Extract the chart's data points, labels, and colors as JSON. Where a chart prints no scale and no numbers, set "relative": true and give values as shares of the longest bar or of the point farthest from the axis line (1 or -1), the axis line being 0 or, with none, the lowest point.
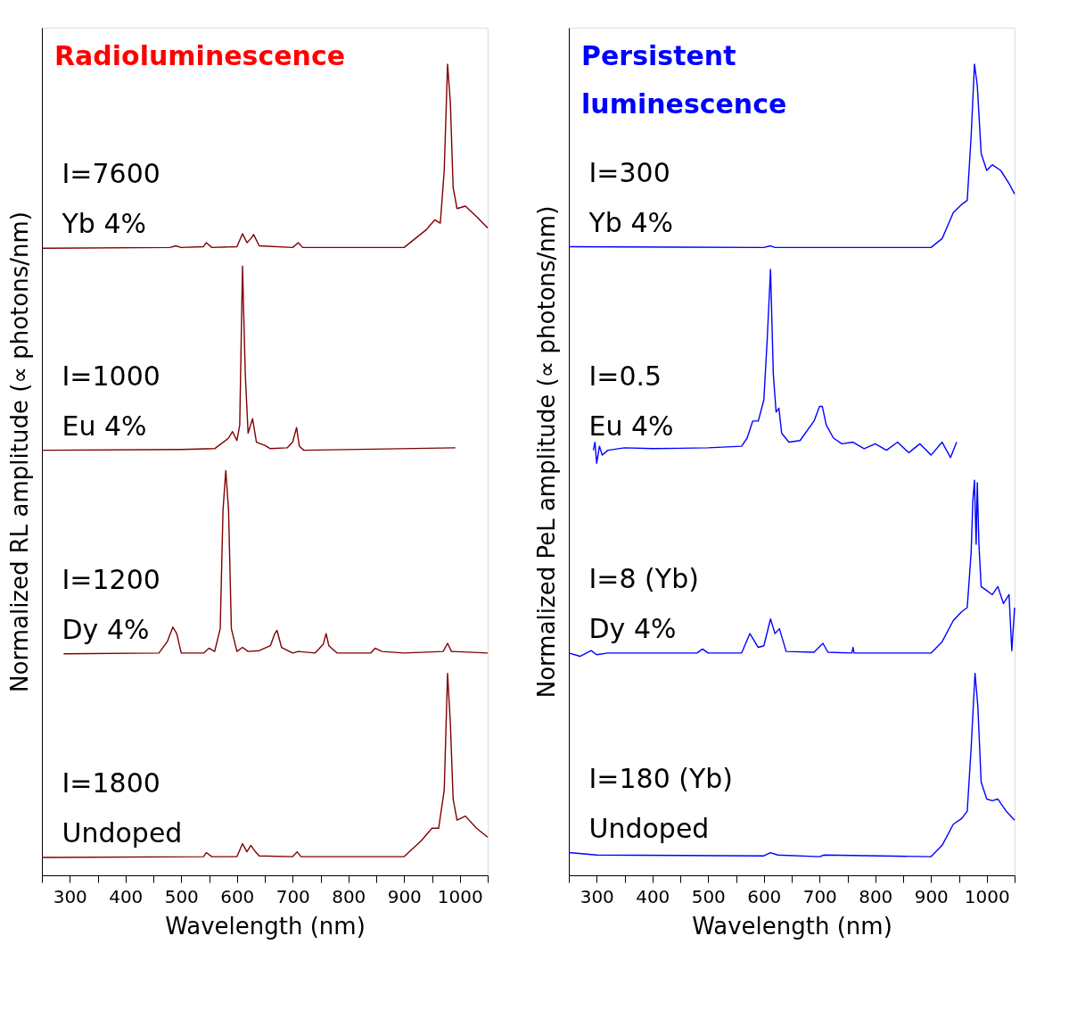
{
  "chart_data": [
    {
      "type": "line",
      "title": "Radioluminescence",
      "xlabel": "Wavelength (nm)",
      "ylabel": "Normalized RL amplitude (∝ photons/nm)",
      "relative": true,
      "xlim": [
        250,
        1050
      ],
      "xticks": [
        {
          "value": 250,
          "label": null
        },
        300,
        {
          "value": 350,
          "label": null
        },
        400,
        {
          "value": 450,
          "label": null
        },
        500,
        {
          "value": 550,
          "label": null
        },
        600,
        {
          "value": 650,
          "label": null
        },
        700,
        {
          "value": 750,
          "label": null
        },
        800,
        {
          "value": 850,
          "label": null
        },
        900,
        {
          "value": 950,
          "label": null
        },
        1000,
        {
          "value": 1050,
          "label": null
        }
      ],
      "tick_labels": "x",
      "grid": false,
      "series": [
        {
          "name": "I=7600\nYb 4%",
          "color": "#800000",
          "x": [
            250,
            480,
            490,
            500,
            540,
            545,
            555,
            600,
            610,
            618,
            625,
            630,
            640,
            700,
            710,
            718,
            900,
            940,
            955,
            965,
            972,
            978,
            983,
            988,
            995,
            1010,
            1030,
            1050
          ],
          "values": [
            0.773,
            0.774,
            0.776,
            0.774,
            0.775,
            0.78,
            0.774,
            0.775,
            0.791,
            0.78,
            0.785,
            0.79,
            0.776,
            0.774,
            0.78,
            0.774,
            0.774,
            0.796,
            0.808,
            0.804,
            0.869,
            1.0,
            0.953,
            0.848,
            0.822,
            0.825,
            0.812,
            0.798
          ]
        },
        {
          "name": "I=1000\nEu 4%",
          "color": "#800000",
          "x": [
            250,
            500,
            560,
            585,
            592,
            600,
            605,
            610,
            615,
            620,
            628,
            635,
            650,
            660,
            690,
            700,
            707,
            712,
            720,
            992
          ],
          "values": [
            0.524,
            0.525,
            0.526,
            0.539,
            0.547,
            0.536,
            0.555,
            0.751,
            0.618,
            0.545,
            0.563,
            0.534,
            0.53,
            0.526,
            0.527,
            0.534,
            0.552,
            0.529,
            0.524,
            0.527
          ]
        },
        {
          "name": "I=1200\nDy 4%",
          "color": "#800000",
          "x": [
            289,
            460,
            475,
            485,
            492,
            500,
            540,
            550,
            560,
            570,
            575,
            580,
            585,
            590,
            600,
            610,
            620,
            640,
            660,
            668,
            672,
            680,
            700,
            710,
            740,
            755,
            760,
            765,
            780,
            840,
            848,
            860,
            900,
            970,
            978,
            985,
            1050
          ],
          "values": [
            0.273,
            0.274,
            0.288,
            0.306,
            0.298,
            0.274,
            0.274,
            0.28,
            0.276,
            0.304,
            0.45,
            0.499,
            0.45,
            0.304,
            0.276,
            0.281,
            0.276,
            0.277,
            0.283,
            0.298,
            0.302,
            0.281,
            0.274,
            0.276,
            0.274,
            0.285,
            0.298,
            0.283,
            0.274,
            0.274,
            0.28,
            0.276,
            0.274,
            0.276,
            0.286,
            0.276,
            0.274
          ]
        },
        {
          "name": "I=1800\nUndoped",
          "color": "#800000",
          "x": [
            250,
            540,
            545,
            555,
            600,
            610,
            618,
            625,
            632,
            640,
            700,
            708,
            715,
            900,
            930,
            950,
            962,
            972,
            978,
            983,
            988,
            995,
            1010,
            1030,
            1050
          ],
          "values": [
            0.022,
            0.023,
            0.028,
            0.023,
            0.023,
            0.039,
            0.029,
            0.037,
            0.03,
            0.024,
            0.023,
            0.029,
            0.023,
            0.023,
            0.042,
            0.058,
            0.058,
            0.105,
            0.249,
            0.188,
            0.094,
            0.068,
            0.073,
            0.058,
            0.047
          ]
        }
      ]
    },
    {
      "type": "line",
      "title": "Persistent\nluminescence",
      "xlabel": "Wavelength (nm)",
      "ylabel": "Normalized PeL amplitude (∝ photons/nm)",
      "relative": true,
      "xlim": [
        250,
        1050
      ],
      "xticks": [
        {
          "value": 250,
          "label": null
        },
        300,
        {
          "value": 350,
          "label": null
        },
        400,
        {
          "value": 450,
          "label": null
        },
        500,
        {
          "value": 550,
          "label": null
        },
        600,
        {
          "value": 650,
          "label": null
        },
        700,
        {
          "value": 750,
          "label": null
        },
        800,
        {
          "value": 850,
          "label": null
        },
        900,
        {
          "value": 950,
          "label": null
        },
        1000,
        {
          "value": 1050,
          "label": null
        }
      ],
      "tick_labels": "x",
      "grid": false,
      "series": [
        {
          "name": "I=300\nYb 4%",
          "color": "#0000ff",
          "x": [
            250,
            600,
            612,
            620,
            900,
            920,
            940,
            955,
            965,
            972,
            978,
            983,
            990,
            1000,
            1010,
            1025,
            1040,
            1050
          ],
          "values": [
            0.775,
            0.774,
            0.776,
            0.774,
            0.774,
            0.785,
            0.817,
            0.827,
            0.832,
            0.911,
            1.0,
            0.974,
            0.89,
            0.869,
            0.876,
            0.869,
            0.853,
            0.84
          ]
        },
        {
          "name": "I=0.5\nEu 4%",
          "color": "#0000ff",
          "x": [
            294,
            297,
            300,
            305,
            310,
            320,
            350,
            400,
            500,
            560,
            570,
            580,
            590,
            600,
            606,
            612,
            617,
            622,
            627,
            632,
            645,
            665,
            690,
            700,
            705,
            712,
            725,
            740,
            760,
            780,
            800,
            820,
            840,
            860,
            880,
            900,
            920,
            935,
            946
          ],
          "values": [
            0.524,
            0.534,
            0.508,
            0.529,
            0.518,
            0.524,
            0.527,
            0.526,
            0.527,
            0.529,
            0.539,
            0.56,
            0.56,
            0.586,
            0.66,
            0.747,
            0.618,
            0.571,
            0.576,
            0.545,
            0.534,
            0.536,
            0.56,
            0.578,
            0.578,
            0.555,
            0.539,
            0.532,
            0.534,
            0.526,
            0.532,
            0.524,
            0.534,
            0.521,
            0.532,
            0.518,
            0.534,
            0.515,
            0.534
          ]
        },
        {
          "name": "I=8 (Yb)\nDy 4%",
          "color": "#0000ff",
          "x": [
            250,
            270,
            290,
            300,
            320,
            480,
            490,
            500,
            560,
            575,
            590,
            600,
            612,
            620,
            628,
            640,
            690,
            706,
            715,
            758,
            760,
            762,
            900,
            920,
            940,
            955,
            965,
            972,
            975,
            978,
            981,
            983,
            986,
            990,
            1000,
            1010,
            1020,
            1030,
            1040,
            1045,
            1050
          ],
          "values": [
            0.274,
            0.27,
            0.277,
            0.272,
            0.274,
            0.274,
            0.279,
            0.274,
            0.274,
            0.298,
            0.281,
            0.283,
            0.316,
            0.298,
            0.304,
            0.276,
            0.275,
            0.286,
            0.275,
            0.274,
            0.281,
            0.274,
            0.274,
            0.288,
            0.314,
            0.325,
            0.33,
            0.398,
            0.461,
            0.487,
            0.408,
            0.484,
            0.408,
            0.356,
            0.351,
            0.346,
            0.356,
            0.335,
            0.346,
            0.277,
            0.33
          ]
        },
        {
          "name": "I=180 (Yb)\nUndoped",
          "color": "#0000ff",
          "x": [
            250,
            300,
            600,
            612,
            625,
            700,
            708,
            900,
            920,
            940,
            955,
            965,
            972,
            979,
            984,
            990,
            1000,
            1010,
            1020,
            1035,
            1050
          ],
          "values": [
            0.028,
            0.025,
            0.024,
            0.028,
            0.025,
            0.023,
            0.025,
            0.023,
            0.037,
            0.063,
            0.07,
            0.079,
            0.157,
            0.249,
            0.209,
            0.115,
            0.094,
            0.092,
            0.094,
            0.079,
            0.068
          ]
        }
      ]
    }
  ]
}
